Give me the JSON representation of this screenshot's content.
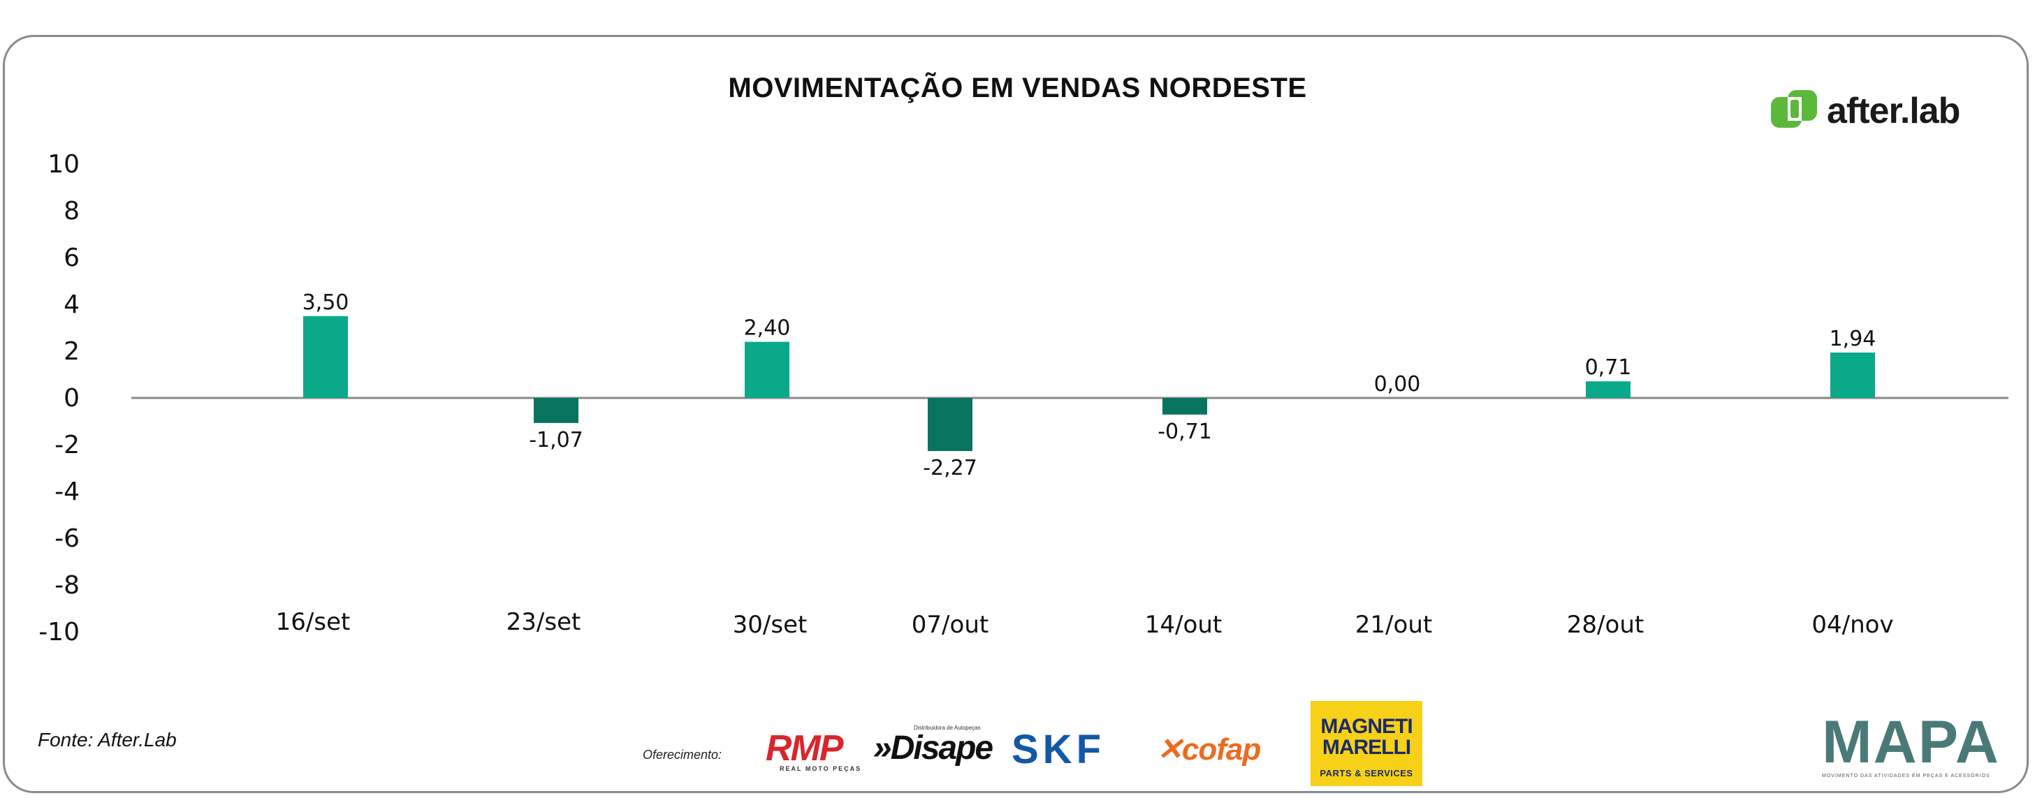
{
  "chart_data": {
    "type": "bar",
    "title": "MOVIMENTAÇÃO EM VENDAS NORDESTE",
    "xlabel": "",
    "ylabel": "",
    "ylim": [
      -10,
      10
    ],
    "yticks": [
      "10",
      "8",
      "6",
      "4",
      "2",
      "0",
      "-2",
      "-4",
      "-6",
      "-8",
      "-10"
    ],
    "ytick_values": [
      10,
      8,
      6,
      4,
      2,
      0,
      -2,
      -4,
      -6,
      -8,
      -10
    ],
    "categories": [
      "16/set",
      "23/set",
      "30/set",
      "07/out",
      "14/out",
      "21/out",
      "28/out",
      "04/nov"
    ],
    "values": [
      3.5,
      -1.07,
      2.4,
      -2.27,
      -0.71,
      0.0,
      0.71,
      1.94
    ],
    "value_labels": [
      "3,50",
      "-1,07",
      "2,40",
      "-2,27",
      "-0,71",
      "0,00",
      "0,71",
      "1,94"
    ],
    "grid": false,
    "colors": {
      "positive": "#0aa98a",
      "negative": "#08735f",
      "axis": "#8a8a8a",
      "text": "#111111"
    }
  },
  "header": {
    "brand": "after.lab",
    "brand_colors": {
      "mark": "#5cb83b",
      "mark_dark": "#2f8a2a"
    }
  },
  "footer": {
    "source": "Fonte: After.Lab",
    "sponsors_label": "Oferecimento:",
    "sponsors": {
      "rmp": "RMP",
      "rmp_sub": "REAL MOTO PEÇAS",
      "disape": "»Disape",
      "disape_sub": "Distribuidora de Autopeças",
      "skf": "SKF",
      "cofap": "cofap",
      "magneti_line1": "MAGNETI",
      "magneti_line2": "MARELLI",
      "magneti_line3": "PARTS & SERVICES"
    },
    "mapa": "MAPA",
    "mapa_tag": "MOVIMENTO DAS ATIVIDADES EM PEÇAS E ACESSÓRIOS"
  }
}
